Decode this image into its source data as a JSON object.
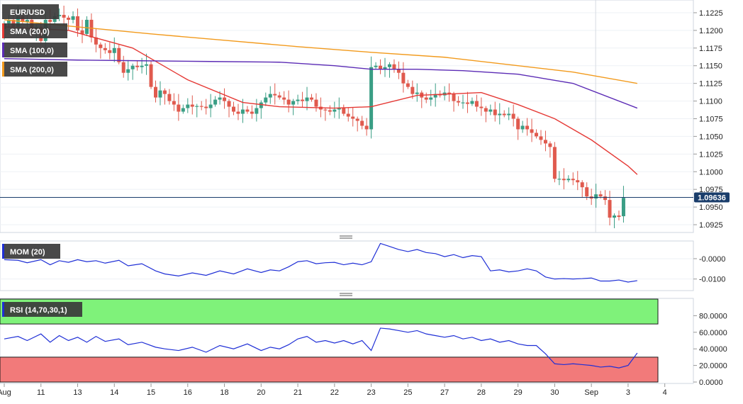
{
  "chart_data": [
    {
      "type": "candlestick",
      "symbol": "EUR/USD",
      "last_price_label": "1.09636",
      "y_ticks": [
        "1.1225",
        "1.1200",
        "1.1175",
        "1.1150",
        "1.1125",
        "1.1100",
        "1.1075",
        "1.1050",
        "1.1025",
        "1.1000",
        "1.0975",
        "1.0950",
        "1.0925"
      ],
      "ylim": [
        1.0916,
        1.124
      ],
      "x_labels": [
        {
          "text": "Aug",
          "slot": 0
        },
        {
          "text": "11",
          "slot": 8
        },
        {
          "text": "13",
          "slot": 16
        },
        {
          "text": "14",
          "slot": 24
        },
        {
          "text": "15",
          "slot": 32
        },
        {
          "text": "16",
          "slot": 40
        },
        {
          "text": "18",
          "slot": 48
        },
        {
          "text": "20",
          "slot": 56
        },
        {
          "text": "21",
          "slot": 64
        },
        {
          "text": "22",
          "slot": 72
        },
        {
          "text": "23",
          "slot": 80
        },
        {
          "text": "25",
          "slot": 88
        },
        {
          "text": "27",
          "slot": 96
        },
        {
          "text": "28",
          "slot": 104
        },
        {
          "text": "29",
          "slot": 112
        },
        {
          "text": "30",
          "slot": 120
        },
        {
          "text": "Sep",
          "slot": 128
        },
        {
          "text": "3",
          "slot": 136
        },
        {
          "text": "4",
          "slot": 144
        }
      ],
      "vertical_marker_slot": 128,
      "close_series": [
        1.121,
        1.1215,
        1.1205,
        1.122,
        1.1212,
        1.1215,
        1.12,
        1.1205,
        1.1185,
        1.1215,
        1.1212,
        1.122,
        1.1222,
        1.1218,
        1.1215,
        1.122,
        1.12,
        1.1195,
        1.1215,
        1.119,
        1.118,
        1.1175,
        1.1172,
        1.1168,
        1.1175,
        1.1155,
        1.114,
        1.1145,
        1.115,
        1.1148,
        1.115,
        1.1152,
        1.112,
        1.1105,
        1.1115,
        1.111,
        1.11,
        1.1095,
        1.1085,
        1.109,
        1.1095,
        1.1092,
        1.1093,
        1.1092,
        1.109,
        1.1095,
        1.1102,
        1.1105,
        1.11,
        1.1092,
        1.1085,
        1.1082,
        1.1088,
        1.1085,
        1.1082,
        1.109,
        1.1098,
        1.1105,
        1.111,
        1.1108,
        1.1105,
        1.1102,
        1.1095,
        1.11,
        1.1102,
        1.11,
        1.1105,
        1.1102,
        1.1092,
        1.1088,
        1.1087,
        1.1085,
        1.1088,
        1.109,
        1.1082,
        1.1078,
        1.1075,
        1.1072,
        1.1065,
        1.106,
        1.1148,
        1.115,
        1.1145,
        1.1148,
        1.1152,
        1.1145,
        1.114,
        1.1125,
        1.112,
        1.111,
        1.1112,
        1.1105,
        1.1102,
        1.1105,
        1.111,
        1.1108,
        1.1112,
        1.111,
        1.11,
        1.1098,
        1.1098,
        1.1096,
        1.11,
        1.1092,
        1.109,
        1.1085,
        1.1088,
        1.108,
        1.1082,
        1.108,
        1.1082,
        1.1075,
        1.106,
        1.1065,
        1.106,
        1.1055,
        1.105,
        1.1045,
        1.104,
        1.1035,
        1.099,
        1.099,
        1.0988,
        1.099,
        1.0988,
        1.0985,
        1.0978,
        1.0965,
        1.0962,
        1.0968,
        1.0965,
        1.096,
        1.0935,
        1.0938,
        1.0936,
        1.0963
      ],
      "last_candle": {
        "open": 1.0937,
        "high": 1.098,
        "low": 1.0928,
        "close": 1.0963
      },
      "series": [
        {
          "name": "SMA (20,0)",
          "color": "#e53935",
          "x": [
            0,
            14,
            28,
            40,
            52,
            60,
            72,
            80,
            90,
            104,
            112,
            120,
            128,
            136,
            138
          ],
          "y": [
            1.1205,
            1.12,
            1.1175,
            1.113,
            1.1098,
            1.1092,
            1.109,
            1.1092,
            1.1108,
            1.1112,
            1.1095,
            1.1075,
            1.1045,
            1.1008,
            1.0996
          ]
        },
        {
          "name": "SMA (100,0)",
          "color": "#5b2bb5",
          "x": [
            0,
            16,
            30,
            45,
            60,
            72,
            80,
            90,
            100,
            112,
            124,
            138
          ],
          "y": [
            1.116,
            1.1158,
            1.1157,
            1.1156,
            1.1155,
            1.115,
            1.1145,
            1.1145,
            1.1143,
            1.1138,
            1.1125,
            1.109
          ]
        },
        {
          "name": "SMA (200,0)",
          "color": "#f29a1c",
          "x": [
            0,
            16,
            32,
            48,
            64,
            80,
            96,
            112,
            124,
            138
          ],
          "y": [
            1.1215,
            1.1205,
            1.1195,
            1.1186,
            1.1177,
            1.1169,
            1.1162,
            1.115,
            1.1141,
            1.1125
          ]
        }
      ]
    },
    {
      "type": "line",
      "name": "MOM (20)",
      "color": "#1f2fd6",
      "y_ticks": [
        "-0.0000",
        "-0.0100"
      ],
      "ylim": [
        -0.015,
        0.008
      ],
      "x": [
        0,
        3,
        5,
        8,
        10,
        12,
        14,
        16,
        18,
        20,
        22,
        25,
        27,
        30,
        33,
        35,
        38,
        41,
        44,
        47,
        50,
        53,
        56,
        58,
        60,
        62,
        64,
        66,
        68,
        70,
        72,
        74,
        76,
        78,
        80,
        82,
        84,
        86,
        88,
        90,
        92,
        94,
        96,
        98,
        100,
        102,
        104,
        106,
        108,
        110,
        112,
        114,
        116,
        118,
        120,
        122,
        124,
        126,
        128,
        130,
        132,
        134,
        136,
        138
      ],
      "values": [
        -0.0005,
        -0.0008,
        -0.002,
        -0.0005,
        -0.003,
        -0.001,
        -0.0018,
        -0.0005,
        -0.0015,
        -0.001,
        -0.0022,
        -0.0008,
        -0.0035,
        -0.0025,
        -0.006,
        -0.0075,
        -0.0085,
        -0.007,
        -0.0082,
        -0.006,
        -0.0075,
        -0.005,
        -0.0068,
        -0.0055,
        -0.006,
        -0.004,
        -0.0015,
        -0.001,
        -0.0025,
        -0.002,
        -0.0018,
        -0.003,
        -0.0022,
        -0.003,
        -0.0015,
        0.0075,
        0.006,
        0.0045,
        0.0035,
        0.0045,
        0.003,
        0.0025,
        0.001,
        0.002,
        0.0005,
        0.0015,
        0.001,
        -0.006,
        -0.0055,
        -0.0065,
        -0.006,
        -0.005,
        -0.006,
        -0.009,
        -0.01,
        -0.0098,
        -0.01,
        -0.0098,
        -0.0095,
        -0.011,
        -0.011,
        -0.0105,
        -0.0115,
        -0.0108
      ]
    },
    {
      "type": "line",
      "name": "RSI (14,70,30,1)",
      "color": "#1f2fd6",
      "overbought": 70,
      "oversold": 30,
      "overbought_color": "#7ff27a",
      "oversold_color": "#f27a7a",
      "y_ticks": [
        "80.0000",
        "60.0000",
        "40.0000",
        "20.0000",
        "0.0000"
      ],
      "ylim": [
        0,
        100
      ],
      "x": [
        0,
        3,
        5,
        8,
        10,
        12,
        14,
        16,
        18,
        20,
        22,
        25,
        27,
        30,
        33,
        35,
        38,
        41,
        44,
        47,
        50,
        53,
        56,
        58,
        60,
        62,
        64,
        66,
        68,
        70,
        72,
        74,
        76,
        78,
        80,
        82,
        84,
        86,
        88,
        90,
        92,
        94,
        96,
        98,
        100,
        102,
        104,
        106,
        108,
        110,
        112,
        114,
        116,
        118,
        120,
        122,
        124,
        126,
        128,
        130,
        132,
        134,
        136,
        138
      ],
      "values": [
        52,
        55,
        50,
        58,
        48,
        56,
        50,
        54,
        48,
        55,
        49,
        52,
        45,
        48,
        42,
        40,
        38,
        42,
        36,
        44,
        40,
        46,
        38,
        42,
        40,
        45,
        52,
        55,
        48,
        50,
        47,
        50,
        46,
        50,
        38,
        65,
        64,
        62,
        60,
        62,
        58,
        56,
        54,
        56,
        52,
        54,
        50,
        52,
        48,
        50,
        46,
        44,
        44,
        34,
        22,
        21,
        22,
        21,
        20,
        18,
        19,
        17,
        20,
        35
      ]
    }
  ]
}
